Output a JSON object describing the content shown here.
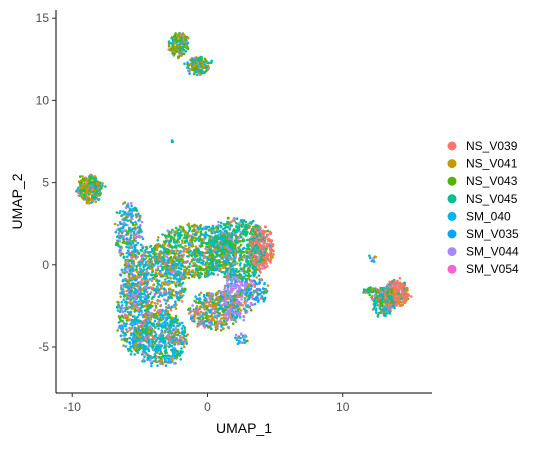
{
  "chart_data": {
    "type": "scatter",
    "xlabel": "UMAP_1",
    "ylabel": "UMAP_2",
    "xlim": [
      -11.2,
      16.6
    ],
    "ylim": [
      -7.8,
      15.5
    ],
    "x_ticks": [
      -10,
      0,
      10
    ],
    "y_ticks": [
      -5,
      0,
      5,
      10,
      15
    ],
    "grid": false,
    "legend_position": "right",
    "series": [
      {
        "name": "NS_V039",
        "color": "#F8766D"
      },
      {
        "name": "NS_V041",
        "color": "#C49A00"
      },
      {
        "name": "NS_V043",
        "color": "#53B400"
      },
      {
        "name": "NS_V045",
        "color": "#00C094"
      },
      {
        "name": "SM_040",
        "color": "#00B6EB"
      },
      {
        "name": "SM_V035",
        "color": "#06A4FF"
      },
      {
        "name": "SM_V044",
        "color": "#A58AFF"
      },
      {
        "name": "SM_V054",
        "color": "#FB61D7"
      }
    ],
    "clusters": [
      {
        "cx": 4.0,
        "cy": 1.0,
        "rx": 0.9,
        "ry": 1.4,
        "n": 260,
        "mix": [
          0.85,
          0.03,
          0.02,
          0.05,
          0.02,
          0.01,
          0.01,
          0.01
        ]
      },
      {
        "cx": 3.6,
        "cy": -1.5,
        "rx": 0.8,
        "ry": 0.8,
        "n": 90,
        "mix": [
          0.1,
          0.05,
          0.05,
          0.1,
          0.1,
          0.5,
          0.05,
          0.05
        ]
      },
      {
        "cx": 2.2,
        "cy": 1.0,
        "rx": 2.2,
        "ry": 1.9,
        "n": 700,
        "mix": [
          0.03,
          0.05,
          0.15,
          0.55,
          0.08,
          0.03,
          0.1,
          0.01
        ]
      },
      {
        "cx": -1.0,
        "cy": 0.8,
        "rx": 3.0,
        "ry": 1.6,
        "n": 800,
        "mix": [
          0.05,
          0.2,
          0.2,
          0.35,
          0.1,
          0.03,
          0.06,
          0.01
        ]
      },
      {
        "cx": -4.0,
        "cy": -1.0,
        "rx": 2.4,
        "ry": 2.2,
        "n": 800,
        "mix": [
          0.08,
          0.2,
          0.1,
          0.1,
          0.3,
          0.05,
          0.15,
          0.02
        ]
      },
      {
        "cx": -3.5,
        "cy": -4.5,
        "rx": 2.0,
        "ry": 1.6,
        "n": 650,
        "mix": [
          0.05,
          0.1,
          0.1,
          0.15,
          0.4,
          0.05,
          0.13,
          0.02
        ]
      },
      {
        "cx": -5.5,
        "cy": -3.0,
        "rx": 1.2,
        "ry": 2.4,
        "n": 350,
        "mix": [
          0.05,
          0.1,
          0.1,
          0.1,
          0.45,
          0.05,
          0.13,
          0.02
        ]
      },
      {
        "cx": 0.5,
        "cy": -2.8,
        "rx": 1.9,
        "ry": 1.2,
        "n": 420,
        "mix": [
          0.1,
          0.2,
          0.15,
          0.15,
          0.1,
          0.05,
          0.2,
          0.05
        ]
      },
      {
        "cx": 2.2,
        "cy": -2.0,
        "rx": 1.2,
        "ry": 1.4,
        "n": 300,
        "mix": [
          0.05,
          0.05,
          0.1,
          0.15,
          0.05,
          0.05,
          0.5,
          0.05
        ]
      },
      {
        "cx": 1.5,
        "cy": 1.0,
        "rx": 0.8,
        "ry": 0.8,
        "n": 120,
        "mix": [
          0.05,
          0.05,
          0.1,
          0.2,
          0.05,
          0.05,
          0.45,
          0.05
        ]
      },
      {
        "cx": -5.8,
        "cy": 2.0,
        "rx": 1.0,
        "ry": 1.8,
        "n": 250,
        "mix": [
          0.02,
          0.08,
          0.1,
          0.15,
          0.3,
          0.05,
          0.28,
          0.02
        ]
      },
      {
        "cx": -8.7,
        "cy": 4.6,
        "rx": 0.9,
        "ry": 0.8,
        "n": 280,
        "mix": [
          0.08,
          0.3,
          0.25,
          0.25,
          0.05,
          0.02,
          0.03,
          0.02
        ]
      },
      {
        "cx": -2.1,
        "cy": 13.4,
        "rx": 0.7,
        "ry": 0.7,
        "n": 180,
        "mix": [
          0.05,
          0.25,
          0.2,
          0.25,
          0.12,
          0.05,
          0.06,
          0.02
        ]
      },
      {
        "cx": -0.7,
        "cy": 12.1,
        "rx": 0.9,
        "ry": 0.5,
        "n": 160,
        "mix": [
          0.05,
          0.2,
          0.2,
          0.2,
          0.15,
          0.08,
          0.1,
          0.02
        ]
      },
      {
        "cx": 14.0,
        "cy": -1.7,
        "rx": 0.9,
        "ry": 0.8,
        "n": 260,
        "mix": [
          0.7,
          0.1,
          0.04,
          0.05,
          0.05,
          0.03,
          0.02,
          0.01
        ]
      },
      {
        "cx": 13.0,
        "cy": -2.2,
        "rx": 0.8,
        "ry": 0.9,
        "n": 220,
        "mix": [
          0.1,
          0.1,
          0.15,
          0.35,
          0.2,
          0.05,
          0.04,
          0.01
        ]
      },
      {
        "cx": 12.0,
        "cy": -1.6,
        "rx": 0.6,
        "ry": 0.1,
        "n": 40,
        "mix": [
          0.1,
          0.1,
          0.2,
          0.4,
          0.15,
          0.03,
          0.01,
          0.01
        ]
      },
      {
        "cx": 12.2,
        "cy": 0.4,
        "rx": 0.2,
        "ry": 0.2,
        "n": 10,
        "mix": [
          0.2,
          0.1,
          0.1,
          0.2,
          0.1,
          0.1,
          0.2,
          0
        ]
      },
      {
        "cx": -2.6,
        "cy": 7.5,
        "rx": 0.1,
        "ry": 0.1,
        "n": 3,
        "mix": [
          0,
          0,
          0,
          1,
          0,
          0,
          0,
          0
        ]
      },
      {
        "cx": 2.5,
        "cy": -4.5,
        "rx": 0.4,
        "ry": 0.4,
        "n": 25,
        "mix": [
          0,
          0,
          0.1,
          0.2,
          0.3,
          0,
          0.4,
          0
        ]
      }
    ]
  }
}
